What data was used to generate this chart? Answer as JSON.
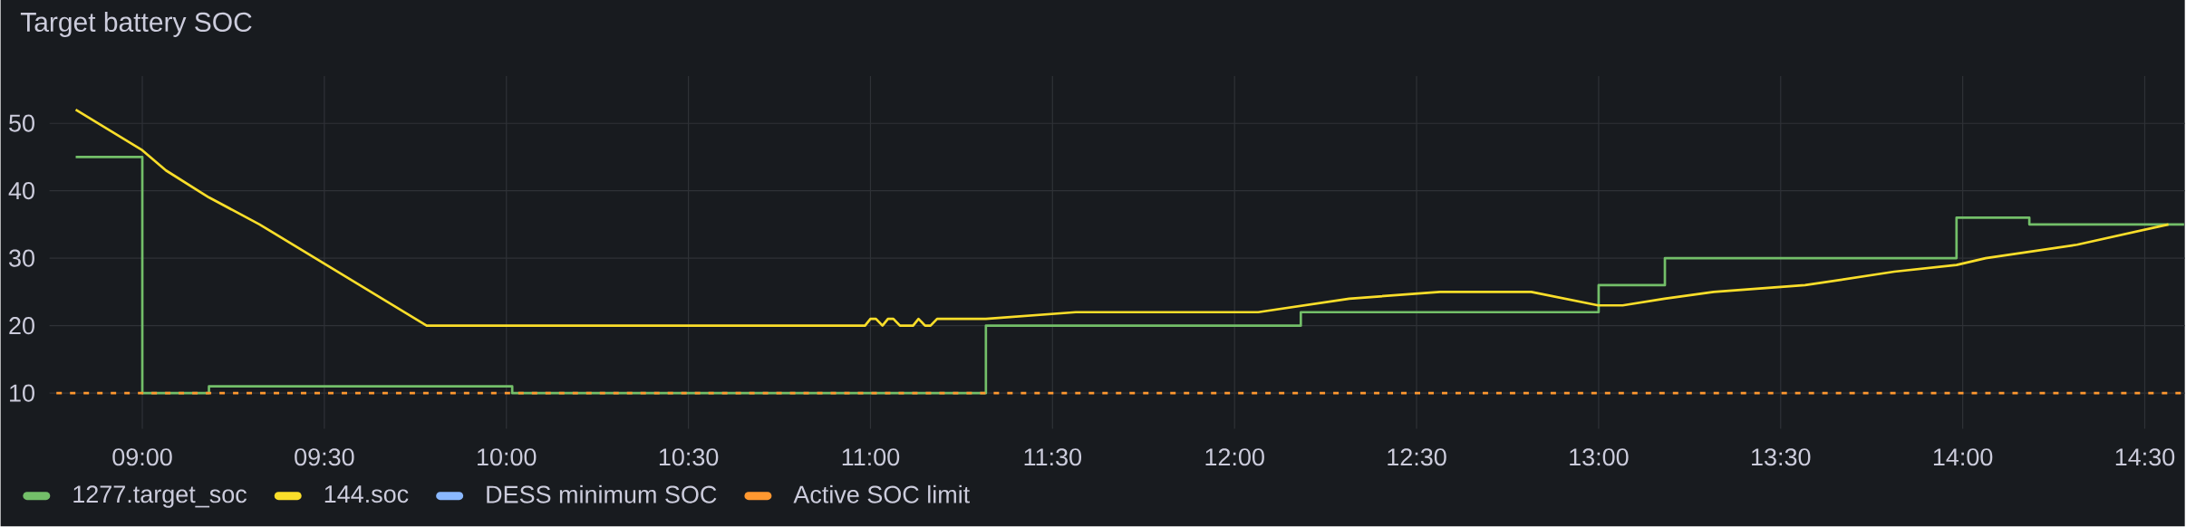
{
  "chart_data": {
    "type": "line",
    "title": "Target battery SOC",
    "xlim": [
      8.745,
      14.61
    ],
    "ylim": [
      4.7,
      57
    ],
    "xticks": [
      {
        "value": 9,
        "label": "09:00"
      },
      {
        "value": 9.5,
        "label": "09:30"
      },
      {
        "value": 10,
        "label": "10:00"
      },
      {
        "value": 10.5,
        "label": "10:30"
      },
      {
        "value": 11,
        "label": "11:00"
      },
      {
        "value": 11.5,
        "label": "11:30"
      },
      {
        "value": 12,
        "label": "12:00"
      },
      {
        "value": 12.5,
        "label": "12:30"
      },
      {
        "value": 13,
        "label": "13:00"
      },
      {
        "value": 13.5,
        "label": "13:30"
      },
      {
        "value": 14,
        "label": "14:00"
      },
      {
        "value": 14.5,
        "label": "14:30"
      }
    ],
    "yticks": [
      10,
      20,
      30,
      40,
      50
    ],
    "grid": true,
    "legend": "bottom",
    "series": [
      {
        "name": "1277.target_soc",
        "color": "#73bf69",
        "type": "step",
        "x": [
          8.817,
          9.0,
          9.183,
          10.016,
          11.317,
          12.182,
          13.0,
          13.182,
          13.983,
          14.183,
          14.608
        ],
        "values": [
          45,
          10,
          11,
          10,
          20,
          22,
          26,
          30,
          36,
          35,
          35
        ]
      },
      {
        "name": "144.soc",
        "color": "#fade2a",
        "x": [
          8.817,
          9.0,
          9.065,
          9.183,
          9.322,
          9.781,
          10.985,
          11.0,
          11.015,
          11.033,
          11.048,
          11.063,
          11.081,
          11.117,
          11.132,
          11.15,
          11.165,
          11.183,
          11.317,
          11.564,
          12.065,
          12.315,
          12.564,
          12.815,
          12.999,
          13.066,
          13.181,
          13.316,
          13.567,
          13.812,
          13.983,
          14.063,
          14.314,
          14.565
        ],
        "values": [
          52,
          46,
          43,
          39,
          35,
          20,
          20,
          21,
          21,
          20,
          21,
          21,
          20,
          20,
          21,
          20,
          20,
          21,
          21,
          22,
          22,
          24,
          25,
          25,
          23,
          23,
          24,
          25,
          26,
          28,
          29,
          30,
          32,
          35
        ]
      },
      {
        "name": "DESS minimum SOC",
        "color": "#8ab8ff"
      },
      {
        "name": "Active SOC limit",
        "color": "#ff9830",
        "line_style": "dashed",
        "x": [
          8.764,
          14.61
        ],
        "values": [
          10,
          10
        ]
      }
    ]
  }
}
